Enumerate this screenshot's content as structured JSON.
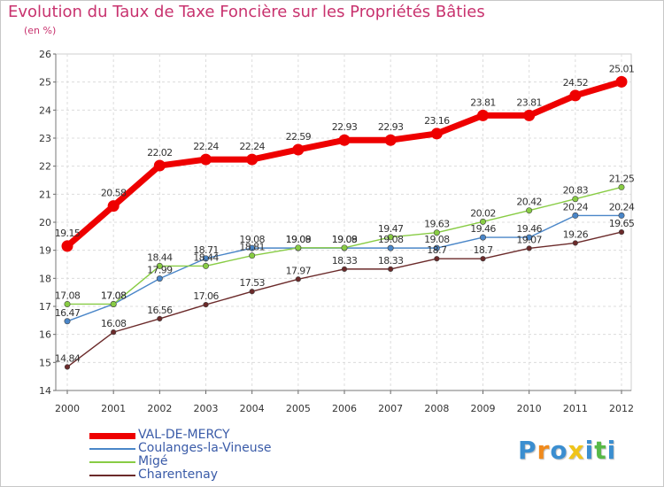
{
  "chart_data": {
    "type": "line",
    "title": "Evolution du Taux de Taxe Foncière sur les Propriétés Bâties",
    "subtitle": "(en %)",
    "xlabel": "",
    "ylabel": "",
    "ylim": [
      14,
      26
    ],
    "yticks": [
      "14",
      "15",
      "16",
      "17",
      "18",
      "19",
      "20",
      "21",
      "22",
      "23",
      "24",
      "25",
      "26"
    ],
    "categories": [
      "2000",
      "2001",
      "2002",
      "2003",
      "2004",
      "2005",
      "2006",
      "2007",
      "2008",
      "2009",
      "2010",
      "2011",
      "2012"
    ],
    "grid": true,
    "legend_position": "bottom-left",
    "series": [
      {
        "name": "VAL-DE-MERCY",
        "color": "#ee0000",
        "values": [
          19.15,
          20.58,
          22.02,
          22.24,
          22.24,
          22.59,
          22.93,
          22.93,
          23.16,
          23.81,
          23.81,
          24.52,
          25.01
        ],
        "labels": [
          "19.15",
          "20.58",
          "22.02",
          "22.24",
          "22.24",
          "22.59",
          "22.93",
          "22.93",
          "23.16",
          "23.81",
          "23.81",
          "24.52",
          "25.01"
        ]
      },
      {
        "name": "Coulanges-la-Vineuse",
        "color": "#4a86c8",
        "values": [
          16.47,
          17.08,
          17.99,
          18.71,
          19.08,
          19.08,
          19.08,
          19.08,
          19.08,
          19.46,
          19.46,
          20.24,
          20.24
        ],
        "labels": [
          "16.47",
          "17.08",
          "17.99",
          "18.71",
          "19.08",
          "19.08",
          "19.08",
          "19.08",
          "19.08",
          "19.46",
          "19.46",
          "20.24",
          "20.24"
        ]
      },
      {
        "name": "Migé",
        "color": "#88cc44",
        "values": [
          17.08,
          17.08,
          18.44,
          18.44,
          18.81,
          19.09,
          19.09,
          19.47,
          19.63,
          20.02,
          20.42,
          20.83,
          21.25
        ],
        "labels": [
          "17.08",
          "17.08",
          "18.44",
          "18.44",
          "18.81",
          "19.09",
          "19.09",
          "19.47",
          "19.63",
          "20.02",
          "20.42",
          "20.83",
          "21.25"
        ]
      },
      {
        "name": "Charentenay",
        "color": "#6b2a2a",
        "values": [
          14.84,
          16.08,
          16.56,
          17.06,
          17.53,
          17.97,
          18.33,
          18.33,
          18.7,
          18.7,
          19.07,
          19.26,
          19.65
        ],
        "labels": [
          "14.84",
          "16.08",
          "16.56",
          "17.06",
          "17.53",
          "17.97",
          "18.33",
          "18.33",
          "18.7",
          "18.7",
          "19.07",
          "19.26",
          "19.65"
        ]
      }
    ]
  },
  "legend": {
    "items": [
      {
        "label": "VAL-DE-MERCY",
        "color": "#ee0000"
      },
      {
        "label": "Coulanges-la-Vineuse",
        "color": "#4a86c8"
      },
      {
        "label": "Migé",
        "color": "#88cc44"
      },
      {
        "label": "Charentenay",
        "color": "#6b2a2a"
      }
    ]
  },
  "brand": {
    "text": "Proxiti",
    "letters": [
      "P",
      "r",
      "o",
      "x",
      "i",
      "t",
      "i"
    ],
    "colors": [
      "#3b8ed0",
      "#f08a1c",
      "#3b8ed0",
      "#f0c419",
      "#3b8ed0",
      "#58b947",
      "#3b8ed0"
    ]
  }
}
